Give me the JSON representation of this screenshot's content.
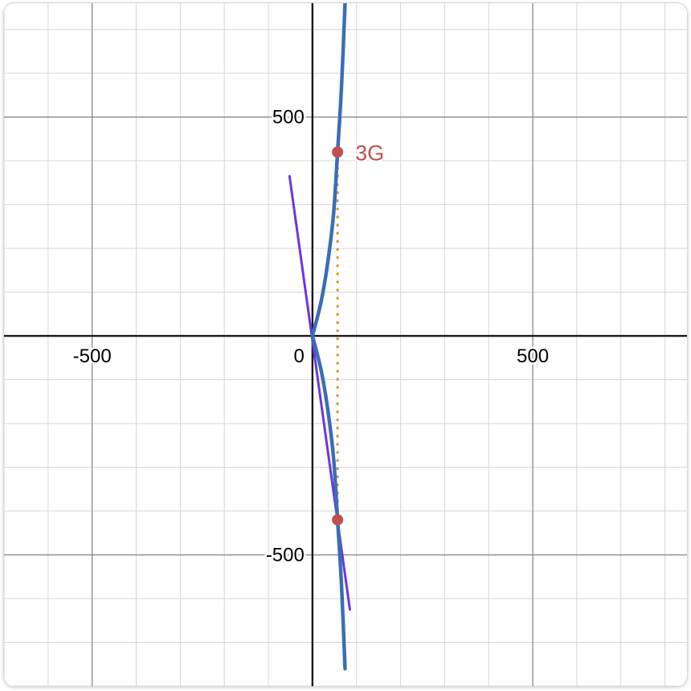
{
  "chart_data": {
    "type": "line",
    "title": "",
    "xlabel": "",
    "ylabel": "",
    "xlim": [
      -700,
      850
    ],
    "ylim": [
      -800,
      760
    ],
    "grid": true,
    "minor_step": 100,
    "major_step": 500,
    "x_ticks": [
      {
        "value": -500,
        "label": "-500"
      },
      {
        "value": 0,
        "label": "0"
      },
      {
        "value": 500,
        "label": "500"
      }
    ],
    "y_ticks": [
      {
        "value": 500,
        "label": "500"
      },
      {
        "value": -500,
        "label": "-500"
      }
    ],
    "curve": {
      "color": "#3a6eb5",
      "points": [
        {
          "x": 0,
          "y": 0
        },
        {
          "x": 20,
          "y": 80
        },
        {
          "x": 35,
          "y": 170
        },
        {
          "x": 48,
          "y": 280
        },
        {
          "x": 57,
          "y": 420
        },
        {
          "x": 66,
          "y": 570
        },
        {
          "x": 74,
          "y": 760
        }
      ]
    },
    "tangent_line": {
      "color": "#6c35de",
      "points": [
        {
          "x": -52,
          "y": 365
        },
        {
          "x": 85,
          "y": -625
        }
      ]
    },
    "vertical_segment": {
      "color": "#e0963a",
      "points": [
        {
          "x": 57,
          "y": 420
        },
        {
          "x": 57,
          "y": -420
        }
      ]
    },
    "points": [
      {
        "x": 57,
        "y": 420,
        "label": "3G",
        "color": "#c0504d"
      },
      {
        "x": 57,
        "y": -420,
        "label": "",
        "color": "#c0504d"
      }
    ]
  }
}
